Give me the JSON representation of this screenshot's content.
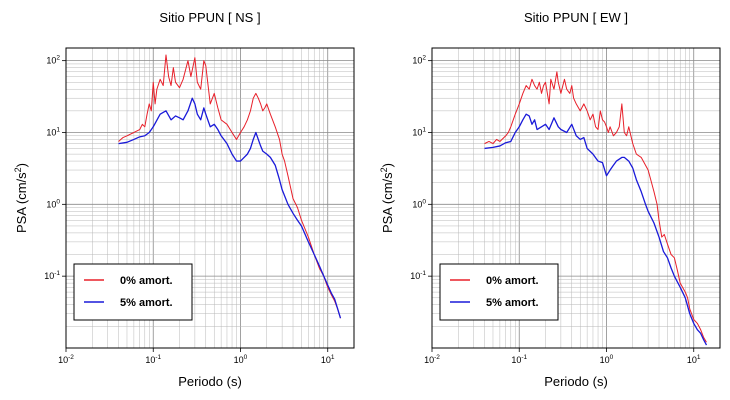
{
  "chart_data": [
    {
      "type": "line",
      "title": "Sitio PPUN [ NS ]",
      "xlabel": "Periodo (s)",
      "ylabel_main": "PSA (cm/s",
      "ylabel_sup": "2",
      "ylabel_end": ")",
      "xscale": "log",
      "yscale": "log",
      "xlim": [
        0.01,
        20
      ],
      "ylim": [
        0.01,
        150
      ],
      "grid": true,
      "legend_position": "bottom-left",
      "x_ticks": [
        {
          "base": "10",
          "exp": "-2",
          "value": 0.01
        },
        {
          "base": "10",
          "exp": "-1",
          "value": 0.1
        },
        {
          "base": "10",
          "exp": "0",
          "value": 1
        },
        {
          "base": "10",
          "exp": "1",
          "value": 10
        }
      ],
      "y_ticks": [
        {
          "base": "10",
          "exp": "-1",
          "value": 0.1
        },
        {
          "base": "10",
          "exp": "0",
          "value": 1
        },
        {
          "base": "10",
          "exp": "1",
          "value": 10
        },
        {
          "base": "10",
          "exp": "2",
          "value": 100
        }
      ],
      "series": [
        {
          "name": "0% amort.",
          "color": "#e8202a",
          "points": [
            [
              0.04,
              7.5
            ],
            [
              0.045,
              8.5
            ],
            [
              0.05,
              9
            ],
            [
              0.06,
              10
            ],
            [
              0.07,
              11
            ],
            [
              0.075,
              13
            ],
            [
              0.08,
              12
            ],
            [
              0.085,
              18
            ],
            [
              0.09,
              25
            ],
            [
              0.095,
              20
            ],
            [
              0.1,
              50
            ],
            [
              0.105,
              25
            ],
            [
              0.11,
              40
            ],
            [
              0.12,
              55
            ],
            [
              0.13,
              45
            ],
            [
              0.14,
              120
            ],
            [
              0.15,
              60
            ],
            [
              0.16,
              45
            ],
            [
              0.17,
              80
            ],
            [
              0.18,
              50
            ],
            [
              0.2,
              42
            ],
            [
              0.22,
              55
            ],
            [
              0.25,
              100
            ],
            [
              0.27,
              60
            ],
            [
              0.3,
              110
            ],
            [
              0.32,
              50
            ],
            [
              0.35,
              40
            ],
            [
              0.38,
              100
            ],
            [
              0.4,
              85
            ],
            [
              0.45,
              25
            ],
            [
              0.5,
              35
            ],
            [
              0.55,
              22
            ],
            [
              0.6,
              15
            ],
            [
              0.7,
              13
            ],
            [
              0.8,
              10
            ],
            [
              0.9,
              8
            ],
            [
              1.0,
              10
            ],
            [
              1.1,
              12
            ],
            [
              1.2,
              15
            ],
            [
              1.3,
              20
            ],
            [
              1.4,
              30
            ],
            [
              1.5,
              35
            ],
            [
              1.6,
              30
            ],
            [
              1.7,
              25
            ],
            [
              1.8,
              20
            ],
            [
              1.9,
              22
            ],
            [
              2.0,
              25
            ],
            [
              2.2,
              18
            ],
            [
              2.5,
              12
            ],
            [
              2.8,
              8
            ],
            [
              3.0,
              5
            ],
            [
              3.2,
              4
            ],
            [
              3.5,
              2.5
            ],
            [
              4.0,
              1.2
            ],
            [
              4.5,
              0.9
            ],
            [
              5.0,
              0.6
            ],
            [
              6.0,
              0.35
            ],
            [
              7.0,
              0.2
            ],
            [
              8.0,
              0.13
            ],
            [
              9.0,
              0.1
            ],
            [
              10.0,
              0.07
            ],
            [
              11.0,
              0.055
            ],
            [
              12.0,
              0.045
            ],
            [
              13.0,
              0.035
            ],
            [
              14.0,
              0.026
            ]
          ]
        },
        {
          "name": "5% amort.",
          "color": "#1a1ad9",
          "points": [
            [
              0.04,
              7
            ],
            [
              0.05,
              7.3
            ],
            [
              0.06,
              8
            ],
            [
              0.07,
              8.7
            ],
            [
              0.08,
              9
            ],
            [
              0.09,
              10
            ],
            [
              0.1,
              12
            ],
            [
              0.12,
              18
            ],
            [
              0.14,
              20
            ],
            [
              0.16,
              15
            ],
            [
              0.18,
              17
            ],
            [
              0.2,
              16
            ],
            [
              0.22,
              15
            ],
            [
              0.25,
              20
            ],
            [
              0.28,
              30
            ],
            [
              0.3,
              25
            ],
            [
              0.32,
              18
            ],
            [
              0.35,
              15
            ],
            [
              0.38,
              22
            ],
            [
              0.4,
              18
            ],
            [
              0.45,
              12
            ],
            [
              0.5,
              13
            ],
            [
              0.55,
              11
            ],
            [
              0.6,
              9
            ],
            [
              0.7,
              7
            ],
            [
              0.8,
              5
            ],
            [
              0.9,
              4
            ],
            [
              1.0,
              4
            ],
            [
              1.1,
              4.5
            ],
            [
              1.2,
              5
            ],
            [
              1.3,
              6
            ],
            [
              1.4,
              8
            ],
            [
              1.5,
              10
            ],
            [
              1.6,
              8
            ],
            [
              1.7,
              6.5
            ],
            [
              1.8,
              5.5
            ],
            [
              2.0,
              5
            ],
            [
              2.2,
              4.5
            ],
            [
              2.5,
              3.5
            ],
            [
              2.8,
              2.2
            ],
            [
              3.0,
              1.6
            ],
            [
              3.5,
              1.0
            ],
            [
              4.0,
              0.75
            ],
            [
              4.5,
              0.6
            ],
            [
              5.0,
              0.5
            ],
            [
              6.0,
              0.3
            ],
            [
              7.0,
              0.2
            ],
            [
              8.0,
              0.14
            ],
            [
              9.0,
              0.1
            ],
            [
              10.0,
              0.075
            ],
            [
              11.0,
              0.058
            ],
            [
              12.0,
              0.048
            ],
            [
              13.0,
              0.035
            ],
            [
              14.0,
              0.026
            ]
          ]
        }
      ]
    },
    {
      "type": "line",
      "title": "Sitio PPUN [ EW ]",
      "xlabel": "Periodo (s)",
      "ylabel_main": "PSA (cm/s",
      "ylabel_sup": "2",
      "ylabel_end": ")",
      "xscale": "log",
      "yscale": "log",
      "xlim": [
        0.01,
        20
      ],
      "ylim": [
        0.01,
        150
      ],
      "grid": true,
      "legend_position": "bottom-left",
      "x_ticks": [
        {
          "base": "10",
          "exp": "-2",
          "value": 0.01
        },
        {
          "base": "10",
          "exp": "-1",
          "value": 0.1
        },
        {
          "base": "10",
          "exp": "0",
          "value": 1
        },
        {
          "base": "10",
          "exp": "1",
          "value": 10
        }
      ],
      "y_ticks": [
        {
          "base": "10",
          "exp": "-1",
          "value": 0.1
        },
        {
          "base": "10",
          "exp": "0",
          "value": 1
        },
        {
          "base": "10",
          "exp": "1",
          "value": 10
        },
        {
          "base": "10",
          "exp": "2",
          "value": 100
        }
      ],
      "series": [
        {
          "name": "0% amort.",
          "color": "#e8202a",
          "points": [
            [
              0.04,
              7
            ],
            [
              0.045,
              7.5
            ],
            [
              0.05,
              7
            ],
            [
              0.055,
              8
            ],
            [
              0.06,
              7.5
            ],
            [
              0.07,
              9
            ],
            [
              0.075,
              10
            ],
            [
              0.08,
              12
            ],
            [
              0.09,
              18
            ],
            [
              0.1,
              25
            ],
            [
              0.11,
              35
            ],
            [
              0.12,
              45
            ],
            [
              0.13,
              40
            ],
            [
              0.14,
              55
            ],
            [
              0.15,
              45
            ],
            [
              0.16,
              40
            ],
            [
              0.17,
              50
            ],
            [
              0.18,
              35
            ],
            [
              0.19,
              45
            ],
            [
              0.2,
              50
            ],
            [
              0.21,
              35
            ],
            [
              0.22,
              25
            ],
            [
              0.23,
              55
            ],
            [
              0.25,
              40
            ],
            [
              0.27,
              70
            ],
            [
              0.28,
              50
            ],
            [
              0.3,
              35
            ],
            [
              0.33,
              55
            ],
            [
              0.35,
              40
            ],
            [
              0.38,
              35
            ],
            [
              0.4,
              45
            ],
            [
              0.42,
              30
            ],
            [
              0.45,
              25
            ],
            [
              0.5,
              20
            ],
            [
              0.55,
              25
            ],
            [
              0.6,
              20
            ],
            [
              0.65,
              15
            ],
            [
              0.7,
              18
            ],
            [
              0.75,
              12
            ],
            [
              0.8,
              11
            ],
            [
              0.85,
              20
            ],
            [
              0.9,
              15
            ],
            [
              0.95,
              14
            ],
            [
              1.0,
              12
            ],
            [
              1.05,
              10
            ],
            [
              1.1,
              12
            ],
            [
              1.2,
              9
            ],
            [
              1.3,
              10
            ],
            [
              1.4,
              12
            ],
            [
              1.5,
              25
            ],
            [
              1.6,
              10
            ],
            [
              1.7,
              9
            ],
            [
              1.8,
              12
            ],
            [
              2.0,
              7
            ],
            [
              2.2,
              5
            ],
            [
              2.5,
              4.5
            ],
            [
              3.0,
              3
            ],
            [
              3.5,
              1.5
            ],
            [
              3.8,
              1.0
            ],
            [
              4.0,
              0.6
            ],
            [
              4.3,
              0.35
            ],
            [
              4.6,
              0.38
            ],
            [
              5.0,
              0.28
            ],
            [
              5.5,
              0.2
            ],
            [
              6.0,
              0.18
            ],
            [
              6.5,
              0.12
            ],
            [
              7.0,
              0.08
            ],
            [
              8.0,
              0.06
            ],
            [
              8.5,
              0.05
            ],
            [
              9.0,
              0.035
            ],
            [
              10.0,
              0.025
            ],
            [
              11.0,
              0.022
            ],
            [
              12.0,
              0.018
            ],
            [
              13.0,
              0.014
            ],
            [
              14.0,
              0.012
            ]
          ]
        },
        {
          "name": "5% amort.",
          "color": "#1a1ad9",
          "points": [
            [
              0.04,
              6
            ],
            [
              0.05,
              6.2
            ],
            [
              0.06,
              6.5
            ],
            [
              0.07,
              7.2
            ],
            [
              0.08,
              7.5
            ],
            [
              0.09,
              10
            ],
            [
              0.1,
              12
            ],
            [
              0.11,
              15
            ],
            [
              0.12,
              18
            ],
            [
              0.13,
              17
            ],
            [
              0.14,
              13
            ],
            [
              0.15,
              15
            ],
            [
              0.16,
              11
            ],
            [
              0.18,
              12
            ],
            [
              0.2,
              13
            ],
            [
              0.22,
              11
            ],
            [
              0.25,
              16
            ],
            [
              0.28,
              12
            ],
            [
              0.3,
              11
            ],
            [
              0.35,
              10
            ],
            [
              0.4,
              13
            ],
            [
              0.45,
              9
            ],
            [
              0.5,
              8
            ],
            [
              0.55,
              8.5
            ],
            [
              0.6,
              6
            ],
            [
              0.7,
              5
            ],
            [
              0.8,
              4
            ],
            [
              0.9,
              3.8
            ],
            [
              1.0,
              2.5
            ],
            [
              1.1,
              3.0
            ],
            [
              1.2,
              3.5
            ],
            [
              1.3,
              4
            ],
            [
              1.5,
              4.5
            ],
            [
              1.6,
              4.5
            ],
            [
              1.8,
              4
            ],
            [
              2.0,
              3.2
            ],
            [
              2.2,
              2.2
            ],
            [
              2.5,
              1.5
            ],
            [
              2.8,
              1.0
            ],
            [
              3.0,
              0.8
            ],
            [
              3.5,
              0.55
            ],
            [
              4.0,
              0.35
            ],
            [
              4.5,
              0.22
            ],
            [
              5.0,
              0.18
            ],
            [
              5.5,
              0.13
            ],
            [
              6.0,
              0.1
            ],
            [
              7.0,
              0.07
            ],
            [
              8.0,
              0.05
            ],
            [
              9.0,
              0.03
            ],
            [
              10.0,
              0.022
            ],
            [
              11.0,
              0.018
            ],
            [
              12.0,
              0.016
            ],
            [
              13.0,
              0.013
            ],
            [
              14.0,
              0.011
            ]
          ]
        }
      ]
    }
  ]
}
